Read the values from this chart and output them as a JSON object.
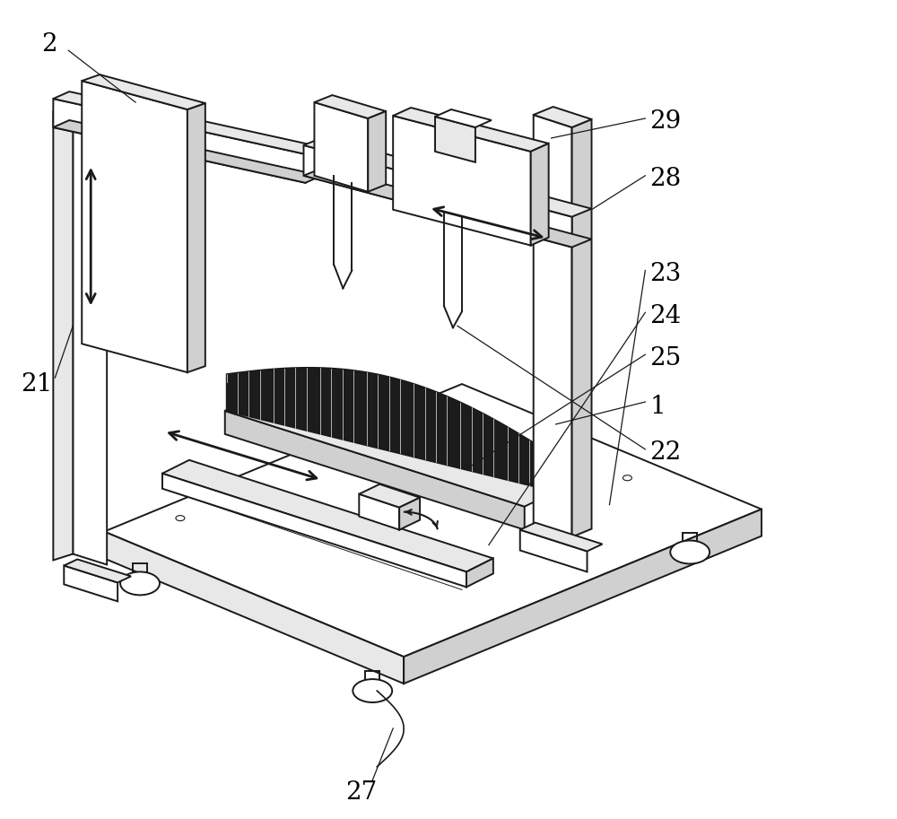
{
  "bg_color": "#ffffff",
  "line_color": "#1a1a1a",
  "line_width": 1.4,
  "annotation_fontsize": 20,
  "gray_light": "#e8e8e8",
  "gray_mid": "#d0d0d0",
  "gray_dark": "#b0b0b0",
  "grating_dark": "#1c1c1c"
}
